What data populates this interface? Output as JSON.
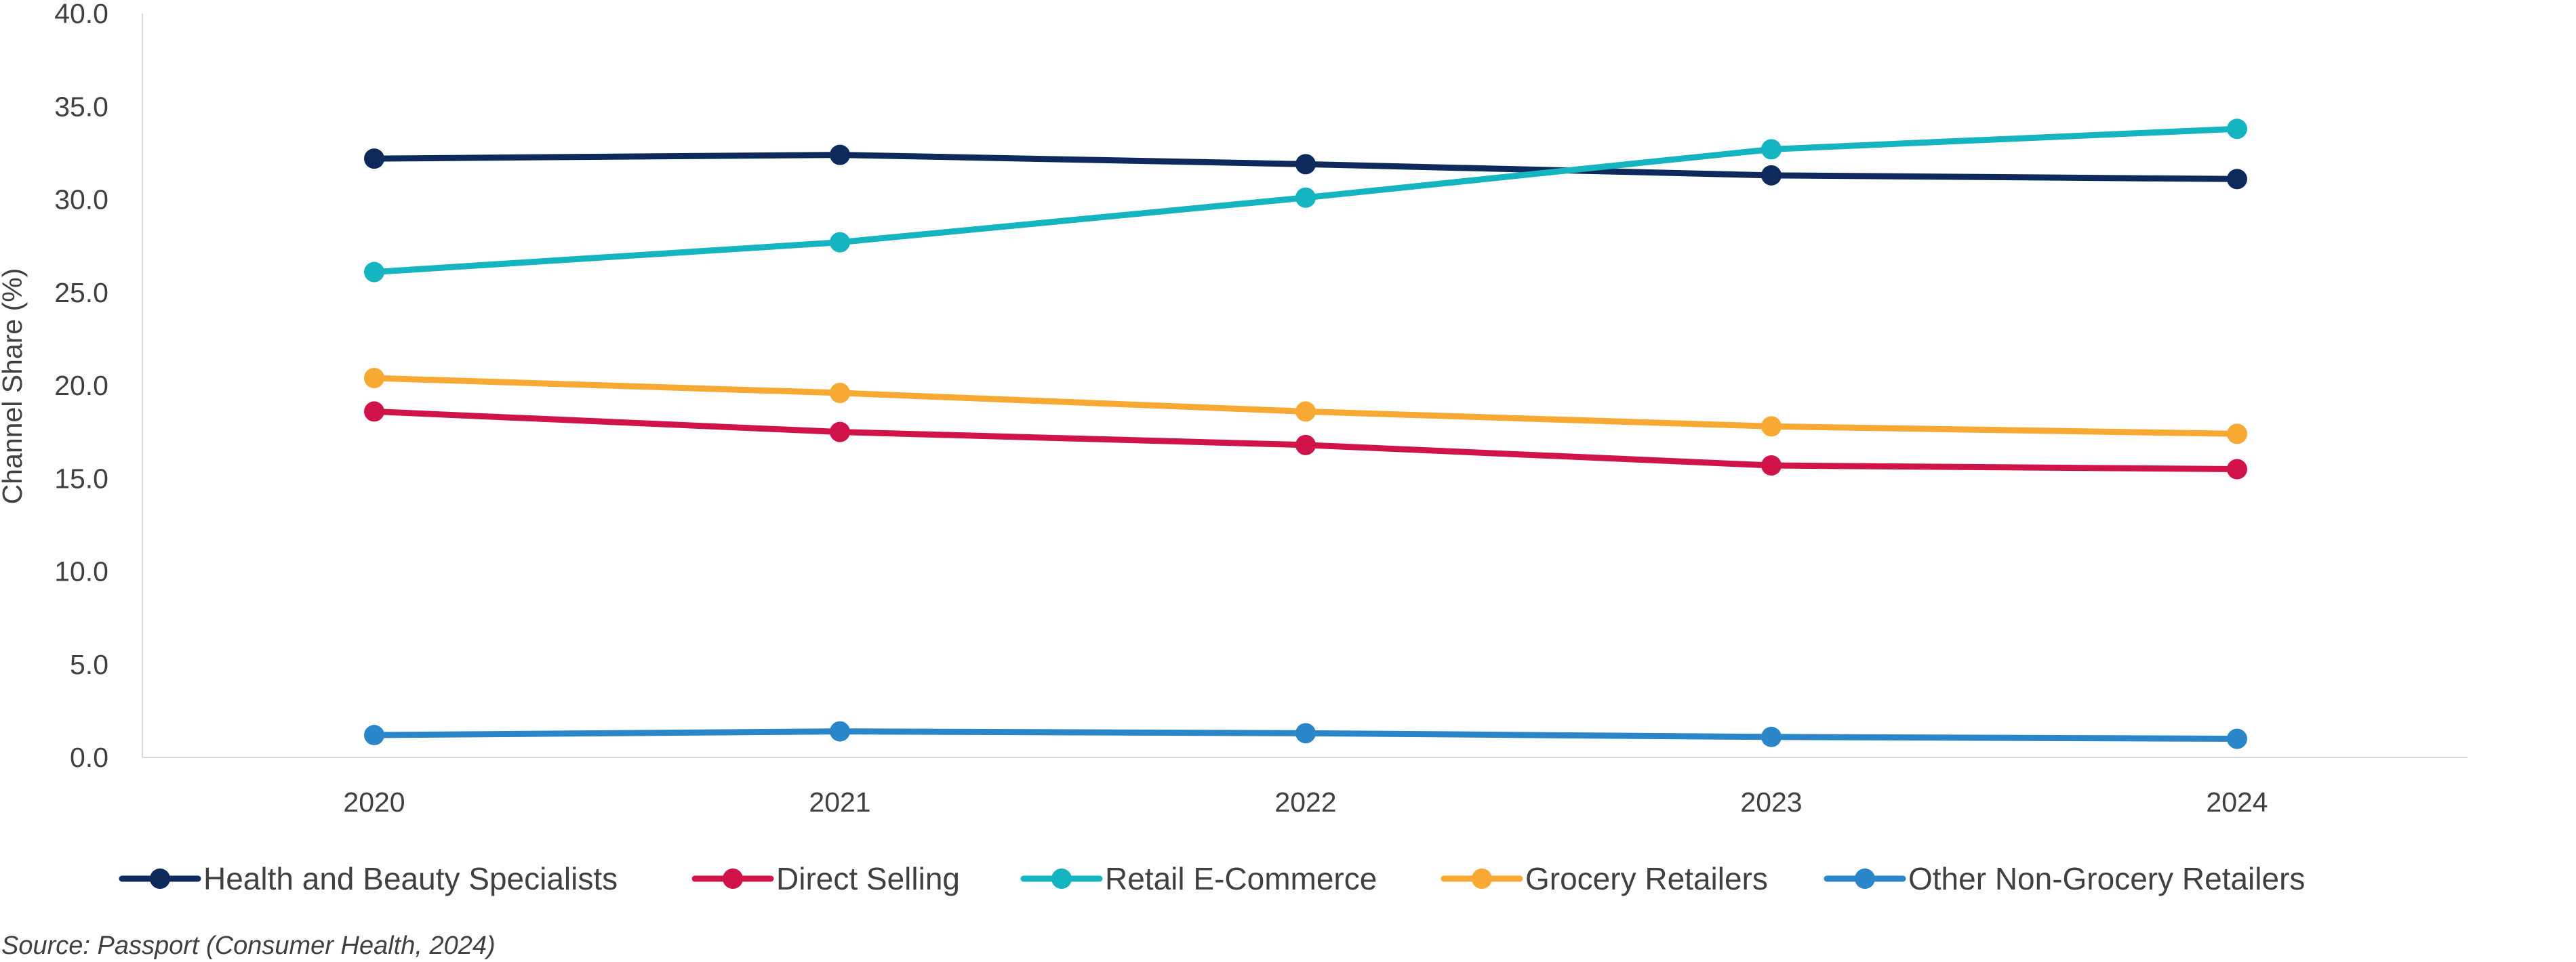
{
  "chart_data": {
    "type": "line",
    "categories": [
      "2020",
      "2021",
      "2022",
      "2023",
      "2024"
    ],
    "ylabel": "Channel Share (%)",
    "ylim": [
      0,
      40
    ],
    "yticks": [
      "0.0",
      "5.0",
      "10.0",
      "15.0",
      "20.0",
      "25.0",
      "30.0",
      "35.0",
      "40.0"
    ],
    "grid": false,
    "legend_position": "bottom",
    "series": [
      {
        "name": "Health and Beauty Specialists",
        "color": "#0e2a5c",
        "values": [
          32.2,
          32.4,
          31.9,
          31.3,
          31.1
        ]
      },
      {
        "name": "Direct Selling",
        "color": "#d0144a",
        "values": [
          18.6,
          17.5,
          16.8,
          15.7,
          15.5
        ]
      },
      {
        "name": "Retail E-Commerce",
        "color": "#14b4c0",
        "values": [
          26.1,
          27.7,
          30.1,
          32.7,
          33.8
        ]
      },
      {
        "name": "Grocery Retailers",
        "color": "#f8a933",
        "values": [
          20.4,
          19.6,
          18.6,
          17.8,
          17.4
        ]
      },
      {
        "name": "Other Non-Grocery Retailers",
        "color": "#2a86c8",
        "values": [
          1.2,
          1.4,
          1.3,
          1.1,
          1.0
        ]
      }
    ],
    "source": "Source: Passport (Consumer Health, 2024)"
  }
}
